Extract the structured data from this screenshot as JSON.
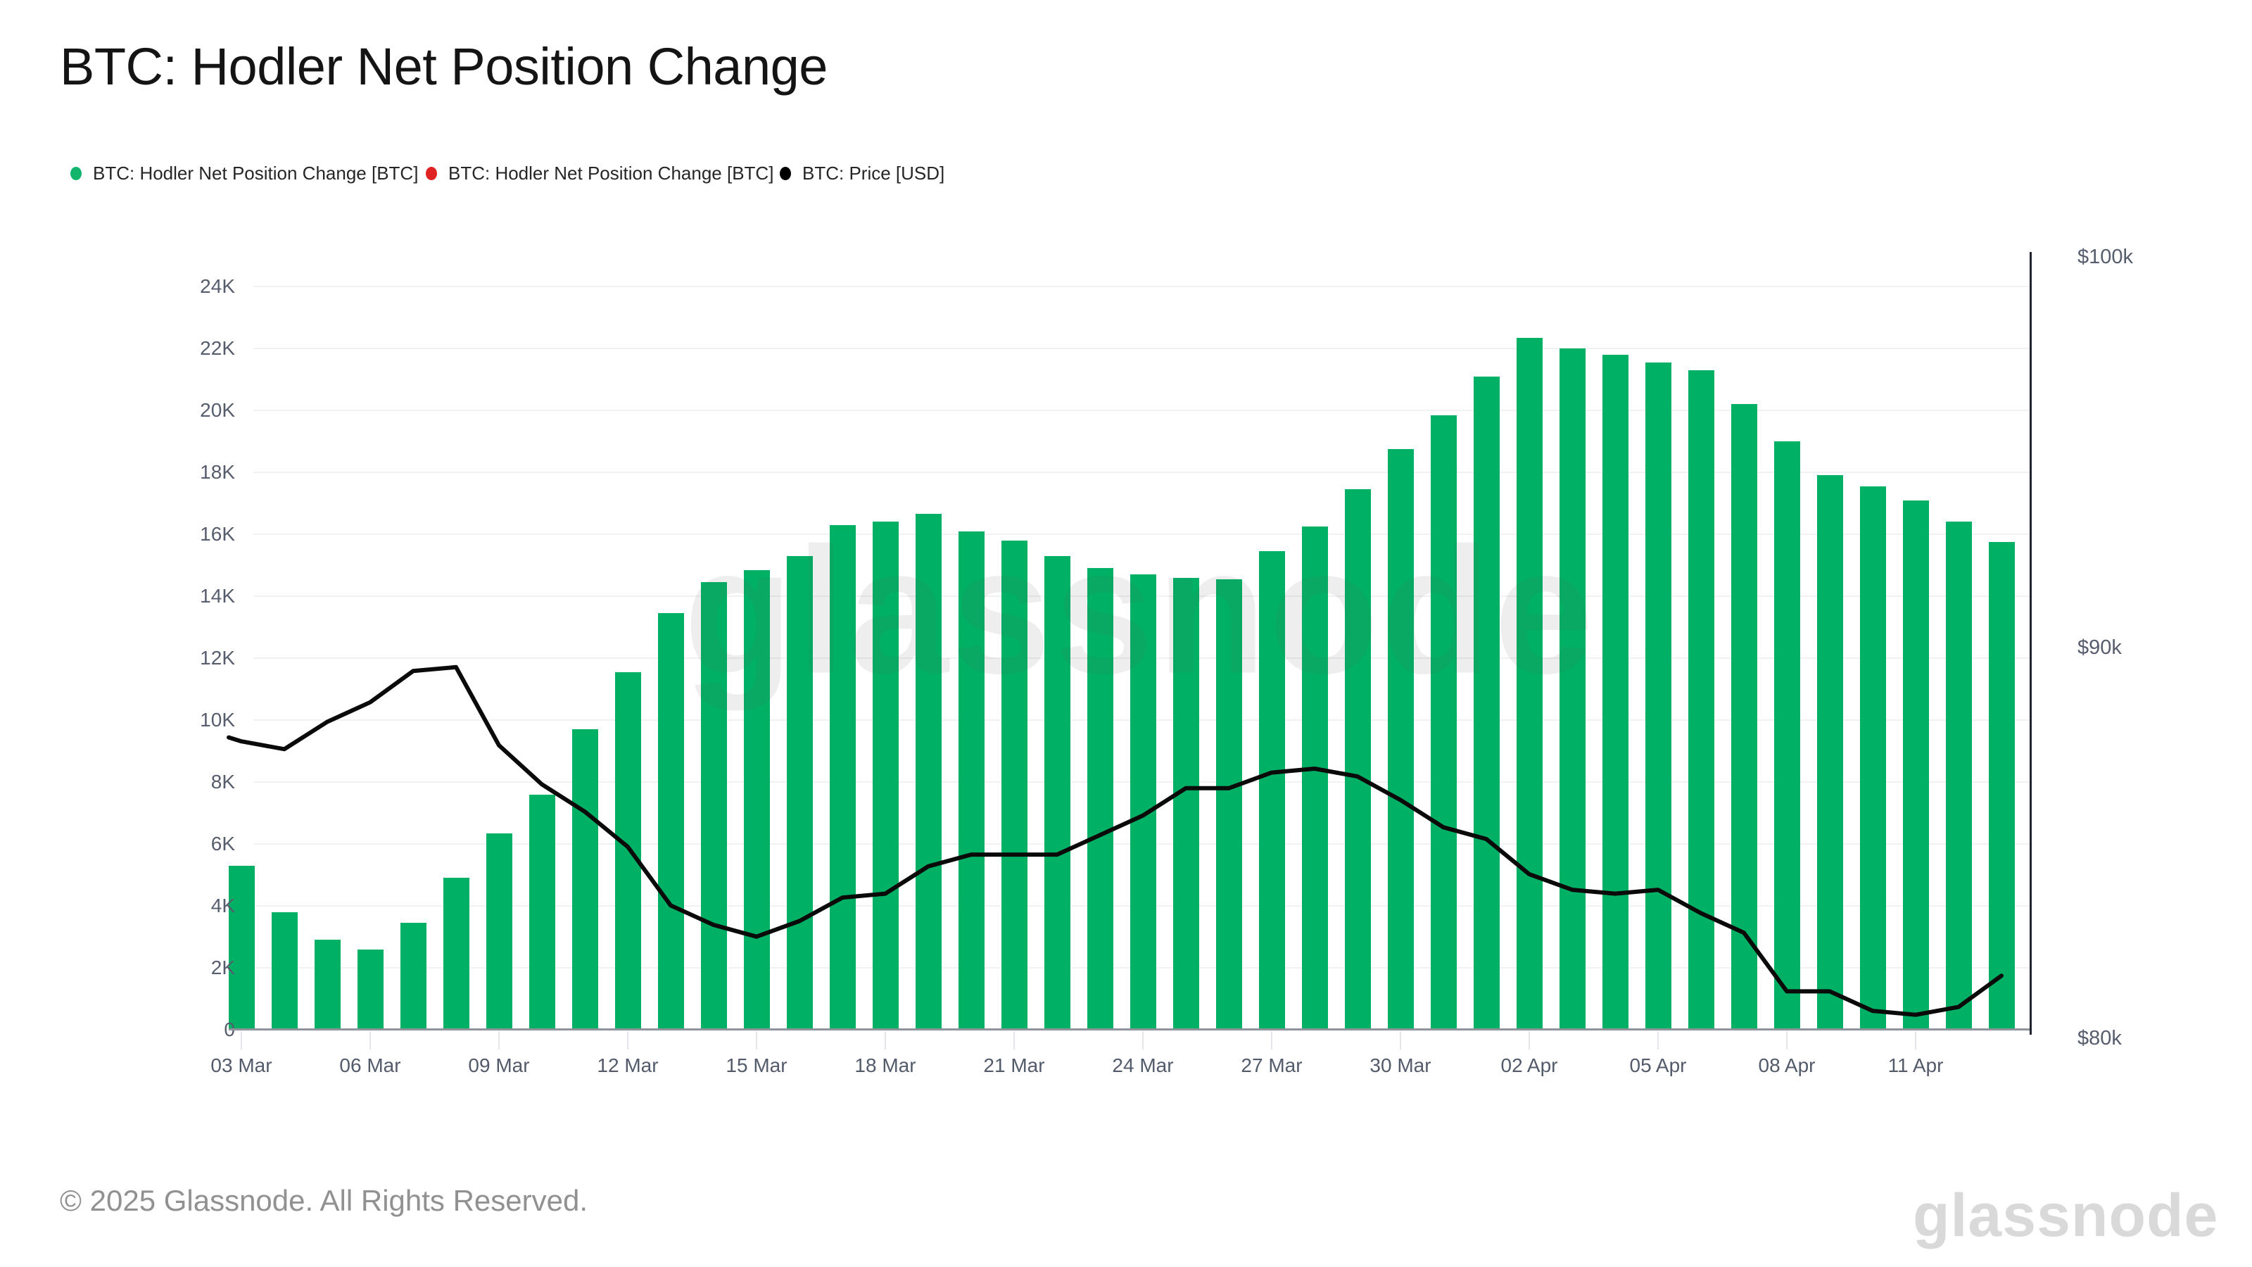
{
  "title": "BTC: Hodler Net Position Change",
  "legend": {
    "items": [
      {
        "label": "BTC: Hodler Net Position Change [BTC]",
        "marker_color": "#12b56b",
        "marker": "green-dot"
      },
      {
        "label": "BTC: Hodler Net Position Change [BTC]",
        "marker_color": "#e02222",
        "marker": "red-dot"
      },
      {
        "label": "BTC: Price [USD]",
        "marker_color": "#000000",
        "marker": "black-dot"
      }
    ]
  },
  "watermark_text": "glassnode",
  "footer": {
    "copyright": "© 2025 Glassnode. All Rights Reserved.",
    "logo_text": "glassnode"
  },
  "colors": {
    "bar_green": "#00b165",
    "price_line": "#0a0a0a",
    "gridline": "#f0f1f3",
    "axis_text": "#565d6d"
  },
  "chart_data": {
    "type": "bar",
    "title": "BTC: Hodler Net Position Change",
    "grid": "horizontal",
    "legend_position": "top-left",
    "left_axis": {
      "unit": "BTC",
      "tick_labels": [
        "0",
        "2K",
        "4K",
        "6K",
        "8K",
        "10K",
        "12K",
        "14K",
        "16K",
        "18K",
        "20K",
        "22K",
        "24K"
      ],
      "tick_values": [
        0,
        2000,
        4000,
        6000,
        8000,
        10000,
        12000,
        14000,
        16000,
        18000,
        20000,
        22000,
        24000
      ],
      "ylim": [
        0,
        25160
      ]
    },
    "right_axis": {
      "unit": "USD",
      "tick_labels": [
        "$100k",
        "$90k",
        "$80k"
      ],
      "tick_values": [
        100000,
        90000,
        80000
      ],
      "ylim": [
        80000,
        100000
      ]
    },
    "categories": [
      "03 Mar",
      "04 Mar",
      "05 Mar",
      "06 Mar",
      "07 Mar",
      "08 Mar",
      "09 Mar",
      "10 Mar",
      "11 Mar",
      "12 Mar",
      "13 Mar",
      "14 Mar",
      "15 Mar",
      "16 Mar",
      "17 Mar",
      "18 Mar",
      "19 Mar",
      "20 Mar",
      "21 Mar",
      "22 Mar",
      "23 Mar",
      "24 Mar",
      "25 Mar",
      "26 Mar",
      "27 Mar",
      "28 Mar",
      "29 Mar",
      "30 Mar",
      "31 Mar",
      "01 Apr",
      "02 Apr",
      "03 Apr",
      "04 Apr",
      "05 Apr",
      "06 Apr",
      "07 Apr",
      "08 Apr",
      "09 Apr",
      "10 Apr",
      "11 Apr",
      "12 Apr",
      "13 Apr"
    ],
    "x_tick_indices": [
      0,
      3,
      6,
      9,
      12,
      15,
      18,
      21,
      24,
      27,
      30,
      33,
      36,
      39
    ],
    "x_tick_labels": [
      "03 Mar",
      "06 Mar",
      "09 Mar",
      "12 Mar",
      "15 Mar",
      "18 Mar",
      "21 Mar",
      "24 Mar",
      "27 Mar",
      "30 Mar",
      "02 Apr",
      "05 Apr",
      "08 Apr",
      "11 Apr"
    ],
    "series": [
      {
        "name": "BTC: Hodler Net Position Change [BTC]",
        "type": "bar",
        "axis": "left",
        "color": "#00b165",
        "values": [
          5300,
          3800,
          2900,
          2600,
          3450,
          4900,
          6350,
          7600,
          9700,
          11550,
          13450,
          14450,
          14850,
          15300,
          16300,
          16400,
          16650,
          16100,
          15800,
          15300,
          14900,
          14700,
          14600,
          14550,
          15450,
          16250,
          17450,
          18750,
          19850,
          21100,
          22350,
          22000,
          21800,
          21550,
          21300,
          20200,
          19000,
          17900,
          17550,
          17100,
          16400,
          15750
        ]
      },
      {
        "name": "BTC: Price [USD]",
        "type": "line",
        "axis": "right",
        "color": "#0a0a0a",
        "values": [
          87600,
          87400,
          88100,
          88600,
          89400,
          89500,
          87500,
          86500,
          85800,
          84900,
          83400,
          82900,
          82600,
          83000,
          83600,
          83700,
          84400,
          84700,
          84700,
          84700,
          85200,
          85700,
          86400,
          86400,
          86800,
          86900,
          86700,
          86100,
          85400,
          85100,
          84200,
          83800,
          83700,
          83800,
          83200,
          82700,
          81200,
          81200,
          80700,
          80600,
          80800,
          81600
        ]
      }
    ]
  }
}
